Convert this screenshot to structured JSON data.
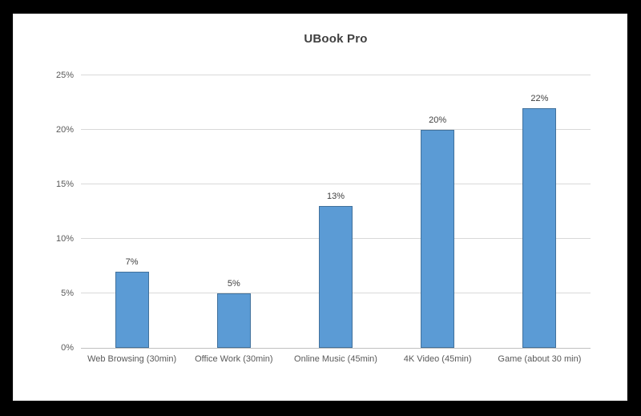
{
  "window": {
    "frame_color": "#000000",
    "panel_color": "#ffffff"
  },
  "chart_data": {
    "type": "bar",
    "title": "UBook Pro",
    "categories": [
      "Web Browsing (30min)",
      "Office Work (30min)",
      "Online Music (45min)",
      "4K Video (45min)",
      "Game (about 30 min)"
    ],
    "values": [
      7,
      5,
      13,
      20,
      22
    ],
    "value_labels": [
      "7%",
      "5%",
      "13%",
      "20%",
      "22%"
    ],
    "xlabel": "",
    "ylabel": "",
    "ylim": [
      0,
      25
    ],
    "ytick_interval": 5,
    "ytick_labels": [
      "0%",
      "5%",
      "10%",
      "15%",
      "20%",
      "25%"
    ],
    "grid": "horizontal",
    "legend": "none",
    "colors": {
      "bar_fill": "#5b9bd5",
      "bar_border": "#41719c",
      "gridline": "#d9d9d9",
      "axis_line": "#bfbfbf",
      "title_text": "#404040",
      "tick_text": "#595959",
      "data_label_text": "#404040"
    }
  }
}
